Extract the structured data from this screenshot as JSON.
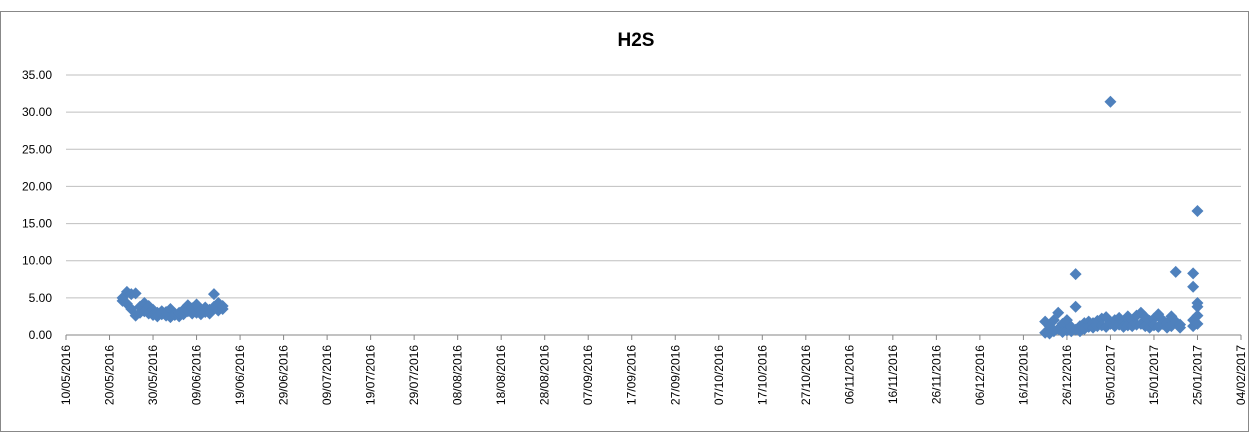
{
  "chart_data": {
    "type": "scatter",
    "title": "H2S",
    "color": "#4f81bd",
    "grid": true,
    "marker": "diamond",
    "xlim": [
      "2016-05-10",
      "2017-02-04"
    ],
    "xticks": [
      {
        "value": "2016-05-10",
        "label": "10/05/2016"
      },
      {
        "value": "2016-05-20",
        "label": "20/05/2016"
      },
      {
        "value": "2016-05-30",
        "label": "30/05/2016"
      },
      {
        "value": "2016-06-09",
        "label": "09/06/2016"
      },
      {
        "value": "2016-06-19",
        "label": "19/06/2016"
      },
      {
        "value": "2016-06-29",
        "label": "29/06/2016"
      },
      {
        "value": "2016-07-09",
        "label": "09/07/2016"
      },
      {
        "value": "2016-07-19",
        "label": "19/07/2016"
      },
      {
        "value": "2016-07-29",
        "label": "29/07/2016"
      },
      {
        "value": "2016-08-08",
        "label": "08/08/2016"
      },
      {
        "value": "2016-08-18",
        "label": "18/08/2016"
      },
      {
        "value": "2016-08-28",
        "label": "28/08/2016"
      },
      {
        "value": "2016-09-07",
        "label": "07/09/2016"
      },
      {
        "value": "2016-09-17",
        "label": "17/09/2016"
      },
      {
        "value": "2016-09-27",
        "label": "27/09/2016"
      },
      {
        "value": "2016-10-07",
        "label": "07/10/2016"
      },
      {
        "value": "2016-10-17",
        "label": "17/10/2016"
      },
      {
        "value": "2016-10-27",
        "label": "27/10/2016"
      },
      {
        "value": "2016-11-06",
        "label": "06/11/2016"
      },
      {
        "value": "2016-11-16",
        "label": "16/11/2016"
      },
      {
        "value": "2016-11-26",
        "label": "26/11/2016"
      },
      {
        "value": "2016-12-06",
        "label": "06/12/2016"
      },
      {
        "value": "2016-12-16",
        "label": "16/12/2016"
      },
      {
        "value": "2016-12-26",
        "label": "26/12/2016"
      },
      {
        "value": "2017-01-05",
        "label": "05/01/2017"
      },
      {
        "value": "2017-01-15",
        "label": "15/01/2017"
      },
      {
        "value": "2017-01-25",
        "label": "25/01/2017"
      },
      {
        "value": "2017-02-04",
        "label": "04/02/2017"
      }
    ],
    "ylim": [
      0,
      35
    ],
    "yticks": [
      {
        "value": 0,
        "label": "0.00"
      },
      {
        "value": 5,
        "label": "5.00"
      },
      {
        "value": 10,
        "label": "10.00"
      },
      {
        "value": 15,
        "label": "15.00"
      },
      {
        "value": 20,
        "label": "20.00"
      },
      {
        "value": 25,
        "label": "25.00"
      },
      {
        "value": 30,
        "label": "30.00"
      },
      {
        "value": 35,
        "label": "35.00"
      }
    ],
    "x": [
      "2016-05-23",
      "2016-05-23",
      "2016-05-24",
      "2016-05-24",
      "2016-05-25",
      "2016-05-25",
      "2016-05-26",
      "2016-05-26",
      "2016-05-27",
      "2016-05-27",
      "2016-05-28",
      "2016-05-28",
      "2016-05-29",
      "2016-05-29",
      "2016-05-30",
      "2016-05-30",
      "2016-05-31",
      "2016-05-31",
      "2016-06-01",
      "2016-06-01",
      "2016-06-02",
      "2016-06-02",
      "2016-06-03",
      "2016-06-03",
      "2016-06-04",
      "2016-06-04",
      "2016-06-05",
      "2016-06-05",
      "2016-06-06",
      "2016-06-06",
      "2016-06-07",
      "2016-06-07",
      "2016-06-08",
      "2016-06-08",
      "2016-06-09",
      "2016-06-09",
      "2016-06-10",
      "2016-06-10",
      "2016-06-11",
      "2016-06-11",
      "2016-06-12",
      "2016-06-12",
      "2016-06-13",
      "2016-06-13",
      "2016-06-14",
      "2016-06-14",
      "2016-06-15",
      "2016-06-15",
      "2016-12-21",
      "2016-12-21",
      "2016-12-22",
      "2016-12-22",
      "2016-12-23",
      "2016-12-23",
      "2016-12-24",
      "2016-12-24",
      "2016-12-25",
      "2016-12-25",
      "2016-12-26",
      "2016-12-26",
      "2016-12-27",
      "2016-12-27",
      "2016-12-28",
      "2016-12-28",
      "2016-12-28",
      "2016-12-29",
      "2016-12-29",
      "2016-12-30",
      "2016-12-30",
      "2016-12-31",
      "2016-12-31",
      "2017-01-01",
      "2017-01-01",
      "2017-01-02",
      "2017-01-02",
      "2017-01-03",
      "2017-01-03",
      "2017-01-04",
      "2017-01-04",
      "2017-01-05",
      "2017-01-05",
      "2017-01-06",
      "2017-01-06",
      "2017-01-07",
      "2017-01-07",
      "2017-01-08",
      "2017-01-08",
      "2017-01-09",
      "2017-01-09",
      "2017-01-10",
      "2017-01-10",
      "2017-01-11",
      "2017-01-11",
      "2017-01-12",
      "2017-01-12",
      "2017-01-13",
      "2017-01-13",
      "2017-01-14",
      "2017-01-14",
      "2017-01-15",
      "2017-01-15",
      "2017-01-16",
      "2017-01-16",
      "2017-01-17",
      "2017-01-17",
      "2017-01-18",
      "2017-01-18",
      "2017-01-19",
      "2017-01-19",
      "2017-01-20",
      "2017-01-20",
      "2017-01-21",
      "2017-01-21",
      "2017-01-24",
      "2017-01-24",
      "2017-01-24",
      "2017-01-24",
      "2017-01-25",
      "2017-01-25",
      "2017-01-25",
      "2017-01-25",
      "2017-01-25"
    ],
    "values": [
      4.6,
      5.0,
      5.8,
      4.2,
      5.5,
      3.5,
      2.6,
      5.6,
      3.0,
      3.8,
      4.3,
      3.2,
      3.9,
      2.9,
      3.4,
      2.7,
      3.0,
      2.5,
      2.8,
      3.2,
      2.6,
      3.1,
      3.5,
      2.4,
      2.9,
      2.7,
      2.5,
      3.0,
      2.8,
      3.4,
      4.0,
      3.2,
      3.6,
      2.9,
      3.0,
      4.1,
      3.3,
      2.8,
      3.1,
      3.7,
      3.4,
      2.9,
      5.5,
      3.8,
      4.3,
      3.3,
      3.5,
      3.9,
      1.8,
      0.3,
      1.2,
      0.2,
      2.0,
      0.5,
      3.0,
      0.8,
      1.5,
      0.4,
      2.0,
      0.6,
      1.1,
      0.5,
      3.8,
      8.2,
      0.7,
      1.2,
      0.5,
      1.6,
      0.8,
      1.8,
      1.1,
      1.6,
      1.0,
      1.9,
      1.2,
      2.2,
      1.3,
      2.4,
      1.1,
      31.4,
      1.5,
      2.0,
      1.2,
      2.3,
      1.4,
      1.7,
      1.1,
      2.5,
      1.3,
      2.0,
      1.2,
      2.6,
      1.4,
      3.0,
      1.5,
      2.4,
      1.2,
      1.9,
      1.0,
      2.2,
      1.3,
      2.8,
      1.1,
      2.0,
      1.5,
      1.6,
      1.0,
      2.5,
      1.2,
      8.5,
      1.8,
      1.4,
      1.0,
      8.3,
      6.5,
      1.2,
      2.0,
      16.7,
      4.3,
      3.8,
      1.5,
      2.6
    ]
  }
}
